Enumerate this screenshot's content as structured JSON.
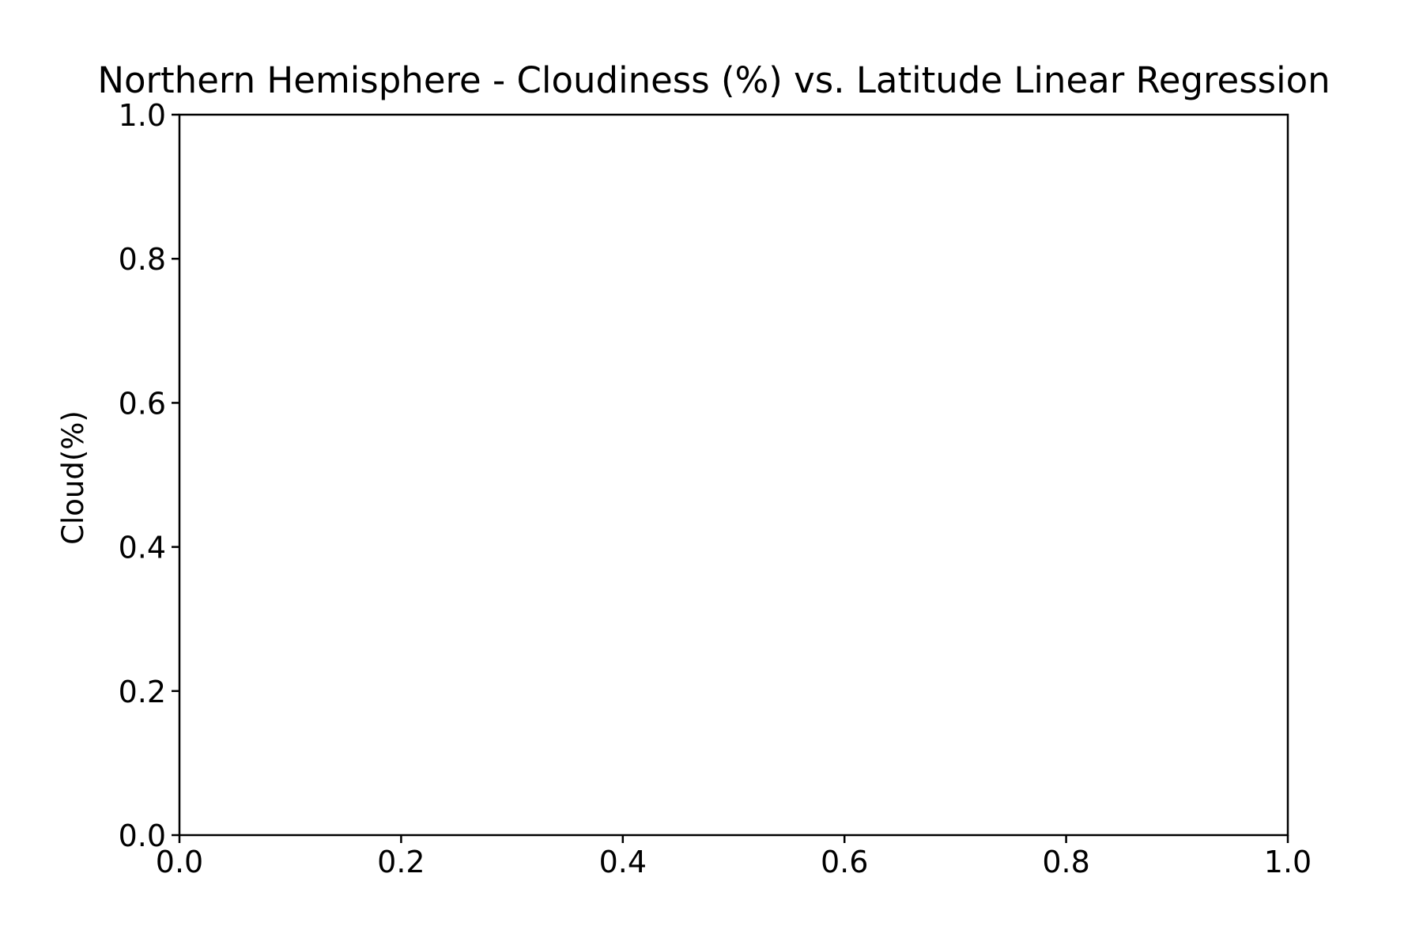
{
  "chart_data": {
    "type": "scatter",
    "title": "Northern Hemisphere - Cloudiness (%) vs. Latitude Linear Regression",
    "xlabel": "",
    "ylabel": "Cloud(%)",
    "xlim": [
      0.0,
      1.0
    ],
    "ylim": [
      0.0,
      1.0
    ],
    "x_ticks": [
      "0.0",
      "0.2",
      "0.4",
      "0.6",
      "0.8",
      "1.0"
    ],
    "y_ticks": [
      "0.0",
      "0.2",
      "0.4",
      "0.6",
      "0.8",
      "1.0"
    ],
    "series": [],
    "grid": false,
    "legend": "none"
  }
}
